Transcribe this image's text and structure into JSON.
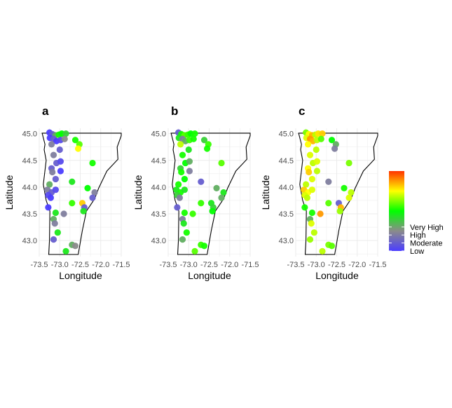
{
  "chart_data": {
    "type": "scatter",
    "xlabel": "Longitude",
    "ylabel": "Latitude",
    "xlim": [
      -73.5,
      -71.5
    ],
    "ylim": [
      42.7,
      45.1
    ],
    "x_ticks": [
      "-73.5",
      "-73.0",
      "-72.5",
      "-72.0",
      "-71.5"
    ],
    "y_ticks": [
      "43.0",
      "43.5",
      "44.0",
      "44.5",
      "45.0"
    ],
    "grid": true,
    "legend": {
      "position": "right",
      "type": "colorbar",
      "labels": [
        "Very High",
        "High",
        "Moderate",
        "Low"
      ],
      "label_values": [
        1.0,
        0.9,
        0.8,
        0.7
      ],
      "range": [
        0.7,
        1.7
      ],
      "colors": [
        "#4b3dff",
        "#8b8b8b",
        "#00ff00",
        "#ffff00",
        "#ff3300"
      ]
    },
    "outline": [
      [
        -73.43,
        45.01
      ],
      [
        -71.5,
        45.01
      ],
      [
        -71.5,
        44.96
      ],
      [
        -71.6,
        44.75
      ],
      [
        -71.58,
        44.52
      ],
      [
        -71.85,
        44.3
      ],
      [
        -72.05,
        43.98
      ],
      [
        -72.15,
        43.78
      ],
      [
        -72.35,
        43.55
      ],
      [
        -72.45,
        43.18
      ],
      [
        -72.55,
        42.74
      ],
      [
        -73.27,
        42.74
      ],
      [
        -73.25,
        43.0
      ],
      [
        -73.24,
        43.55
      ],
      [
        -73.33,
        43.75
      ],
      [
        -73.4,
        44.05
      ],
      [
        -73.33,
        44.5
      ],
      [
        -73.38,
        44.7
      ],
      [
        -73.36,
        44.8
      ],
      [
        -73.43,
        45.01
      ]
    ],
    "panels": [
      {
        "label": "a",
        "points": [
          {
            "lon": -73.25,
            "lat": 45.02,
            "v": 0.7
          },
          {
            "lon": -73.18,
            "lat": 44.99,
            "v": 0.75
          },
          {
            "lon": -73.1,
            "lat": 44.97,
            "v": 0.85
          },
          {
            "lon": -73.02,
            "lat": 44.98,
            "v": 0.95
          },
          {
            "lon": -72.95,
            "lat": 45.0,
            "v": 0.92
          },
          {
            "lon": -72.85,
            "lat": 45.0,
            "v": 0.88
          },
          {
            "lon": -73.24,
            "lat": 44.92,
            "v": 0.7
          },
          {
            "lon": -73.15,
            "lat": 44.9,
            "v": 0.75
          },
          {
            "lon": -73.08,
            "lat": 44.86,
            "v": 0.7
          },
          {
            "lon": -72.98,
            "lat": 44.88,
            "v": 0.72
          },
          {
            "lon": -72.88,
            "lat": 44.9,
            "v": 0.82
          },
          {
            "lon": -72.62,
            "lat": 44.88,
            "v": 0.95
          },
          {
            "lon": -72.52,
            "lat": 44.8,
            "v": 1.05
          },
          {
            "lon": -72.55,
            "lat": 44.72,
            "v": 1.3
          },
          {
            "lon": -73.2,
            "lat": 44.8,
            "v": 0.8
          },
          {
            "lon": -73.0,
            "lat": 44.7,
            "v": 0.75
          },
          {
            "lon": -73.15,
            "lat": 44.6,
            "v": 0.8
          },
          {
            "lon": -73.08,
            "lat": 44.45,
            "v": 0.75
          },
          {
            "lon": -72.98,
            "lat": 44.48,
            "v": 0.72
          },
          {
            "lon": -73.2,
            "lat": 44.35,
            "v": 0.75
          },
          {
            "lon": -73.18,
            "lat": 44.28,
            "v": 0.8
          },
          {
            "lon": -72.98,
            "lat": 44.3,
            "v": 0.7
          },
          {
            "lon": -72.2,
            "lat": 44.45,
            "v": 0.95
          },
          {
            "lon": -73.1,
            "lat": 44.15,
            "v": 0.75
          },
          {
            "lon": -73.25,
            "lat": 44.05,
            "v": 0.85
          },
          {
            "lon": -73.3,
            "lat": 43.95,
            "v": 0.8
          },
          {
            "lon": -73.2,
            "lat": 43.9,
            "v": 0.75
          },
          {
            "lon": -73.28,
            "lat": 43.85,
            "v": 0.72
          },
          {
            "lon": -73.22,
            "lat": 43.8,
            "v": 0.7
          },
          {
            "lon": -73.1,
            "lat": 43.95,
            "v": 0.72
          },
          {
            "lon": -72.7,
            "lat": 44.1,
            "v": 0.9
          },
          {
            "lon": -72.32,
            "lat": 43.98,
            "v": 0.92
          },
          {
            "lon": -72.15,
            "lat": 43.9,
            "v": 0.8
          },
          {
            "lon": -72.2,
            "lat": 43.8,
            "v": 0.75
          },
          {
            "lon": -73.28,
            "lat": 43.62,
            "v": 0.7
          },
          {
            "lon": -73.1,
            "lat": 43.52,
            "v": 0.9
          },
          {
            "lon": -72.7,
            "lat": 43.7,
            "v": 1.0
          },
          {
            "lon": -72.45,
            "lat": 43.7,
            "v": 1.4
          },
          {
            "lon": -72.4,
            "lat": 43.62,
            "v": 0.75
          },
          {
            "lon": -72.42,
            "lat": 43.55,
            "v": 0.9
          },
          {
            "lon": -72.9,
            "lat": 43.5,
            "v": 0.8
          },
          {
            "lon": -73.15,
            "lat": 43.4,
            "v": 0.85
          },
          {
            "lon": -73.12,
            "lat": 43.32,
            "v": 0.8
          },
          {
            "lon": -73.05,
            "lat": 43.15,
            "v": 0.9
          },
          {
            "lon": -73.15,
            "lat": 43.02,
            "v": 0.75
          },
          {
            "lon": -72.7,
            "lat": 42.92,
            "v": 0.85
          },
          {
            "lon": -72.62,
            "lat": 42.9,
            "v": 0.82
          },
          {
            "lon": -72.85,
            "lat": 42.8,
            "v": 0.9
          }
        ]
      },
      {
        "label": "b",
        "points": [
          {
            "lon": -73.25,
            "lat": 45.02,
            "v": 0.75
          },
          {
            "lon": -73.18,
            "lat": 44.99,
            "v": 0.95
          },
          {
            "lon": -73.1,
            "lat": 44.97,
            "v": 1.05
          },
          {
            "lon": -73.02,
            "lat": 44.98,
            "v": 1.0
          },
          {
            "lon": -72.95,
            "lat": 45.0,
            "v": 0.92
          },
          {
            "lon": -72.85,
            "lat": 45.0,
            "v": 0.95
          },
          {
            "lon": -73.24,
            "lat": 44.92,
            "v": 0.9
          },
          {
            "lon": -73.15,
            "lat": 44.9,
            "v": 0.8
          },
          {
            "lon": -73.08,
            "lat": 44.86,
            "v": 0.85
          },
          {
            "lon": -72.98,
            "lat": 44.88,
            "v": 1.0
          },
          {
            "lon": -72.88,
            "lat": 44.9,
            "v": 0.95
          },
          {
            "lon": -72.62,
            "lat": 44.88,
            "v": 0.88
          },
          {
            "lon": -72.52,
            "lat": 44.8,
            "v": 1.0
          },
          {
            "lon": -72.55,
            "lat": 44.72,
            "v": 0.95
          },
          {
            "lon": -73.2,
            "lat": 44.8,
            "v": 1.2
          },
          {
            "lon": -73.0,
            "lat": 44.7,
            "v": 0.9
          },
          {
            "lon": -73.15,
            "lat": 44.6,
            "v": 0.95
          },
          {
            "lon": -73.08,
            "lat": 44.45,
            "v": 0.92
          },
          {
            "lon": -72.98,
            "lat": 44.48,
            "v": 0.85
          },
          {
            "lon": -73.2,
            "lat": 44.35,
            "v": 0.88
          },
          {
            "lon": -73.18,
            "lat": 44.28,
            "v": 0.95
          },
          {
            "lon": -72.98,
            "lat": 44.3,
            "v": 0.8
          },
          {
            "lon": -72.2,
            "lat": 44.45,
            "v": 1.05
          },
          {
            "lon": -73.1,
            "lat": 44.15,
            "v": 0.92
          },
          {
            "lon": -73.25,
            "lat": 44.05,
            "v": 0.95
          },
          {
            "lon": -73.3,
            "lat": 43.95,
            "v": 0.9
          },
          {
            "lon": -73.2,
            "lat": 43.9,
            "v": 0.95
          },
          {
            "lon": -73.28,
            "lat": 43.85,
            "v": 0.88
          },
          {
            "lon": -73.22,
            "lat": 43.8,
            "v": 0.8
          },
          {
            "lon": -73.1,
            "lat": 43.95,
            "v": 0.9
          },
          {
            "lon": -72.7,
            "lat": 44.1,
            "v": 0.75
          },
          {
            "lon": -72.32,
            "lat": 43.98,
            "v": 0.85
          },
          {
            "lon": -72.15,
            "lat": 43.9,
            "v": 0.9
          },
          {
            "lon": -72.2,
            "lat": 43.8,
            "v": 0.85
          },
          {
            "lon": -73.28,
            "lat": 43.62,
            "v": 0.75
          },
          {
            "lon": -73.1,
            "lat": 43.52,
            "v": 0.95
          },
          {
            "lon": -72.7,
            "lat": 43.7,
            "v": 1.0
          },
          {
            "lon": -72.45,
            "lat": 43.7,
            "v": 0.9
          },
          {
            "lon": -72.4,
            "lat": 43.62,
            "v": 0.88
          },
          {
            "lon": -72.42,
            "lat": 43.55,
            "v": 0.92
          },
          {
            "lon": -72.9,
            "lat": 43.5,
            "v": 1.0
          },
          {
            "lon": -73.15,
            "lat": 43.4,
            "v": 0.8
          },
          {
            "lon": -73.12,
            "lat": 43.32,
            "v": 0.9
          },
          {
            "lon": -73.05,
            "lat": 43.15,
            "v": 0.95
          },
          {
            "lon": -73.15,
            "lat": 43.02,
            "v": 0.85
          },
          {
            "lon": -72.7,
            "lat": 42.92,
            "v": 1.0
          },
          {
            "lon": -72.62,
            "lat": 42.9,
            "v": 0.95
          },
          {
            "lon": -72.85,
            "lat": 42.8,
            "v": 1.05
          }
        ]
      },
      {
        "label": "c",
        "points": [
          {
            "lon": -73.25,
            "lat": 45.02,
            "v": 1.1
          },
          {
            "lon": -73.18,
            "lat": 44.99,
            "v": 1.3
          },
          {
            "lon": -73.1,
            "lat": 44.97,
            "v": 1.45
          },
          {
            "lon": -73.02,
            "lat": 44.98,
            "v": 1.2
          },
          {
            "lon": -72.95,
            "lat": 45.0,
            "v": 1.35
          },
          {
            "lon": -72.85,
            "lat": 45.0,
            "v": 1.4
          },
          {
            "lon": -73.24,
            "lat": 44.92,
            "v": 1.25
          },
          {
            "lon": -73.15,
            "lat": 44.9,
            "v": 1.5
          },
          {
            "lon": -73.08,
            "lat": 44.86,
            "v": 1.45
          },
          {
            "lon": -72.98,
            "lat": 44.88,
            "v": 1.2
          },
          {
            "lon": -72.88,
            "lat": 44.9,
            "v": 1.05
          },
          {
            "lon": -72.62,
            "lat": 44.88,
            "v": 0.92
          },
          {
            "lon": -72.52,
            "lat": 44.8,
            "v": 0.85
          },
          {
            "lon": -72.55,
            "lat": 44.72,
            "v": 0.8
          },
          {
            "lon": -73.2,
            "lat": 44.8,
            "v": 1.3
          },
          {
            "lon": -73.0,
            "lat": 44.7,
            "v": 1.2
          },
          {
            "lon": -73.15,
            "lat": 44.6,
            "v": 1.25
          },
          {
            "lon": -73.08,
            "lat": 44.45,
            "v": 1.2
          },
          {
            "lon": -72.98,
            "lat": 44.48,
            "v": 1.25
          },
          {
            "lon": -73.2,
            "lat": 44.35,
            "v": 1.3
          },
          {
            "lon": -73.18,
            "lat": 44.28,
            "v": 1.4
          },
          {
            "lon": -72.98,
            "lat": 44.3,
            "v": 1.2
          },
          {
            "lon": -72.2,
            "lat": 44.45,
            "v": 1.1
          },
          {
            "lon": -73.1,
            "lat": 44.15,
            "v": 1.25
          },
          {
            "lon": -73.25,
            "lat": 44.05,
            "v": 1.2
          },
          {
            "lon": -73.3,
            "lat": 43.95,
            "v": 1.4
          },
          {
            "lon": -73.2,
            "lat": 43.9,
            "v": 1.3
          },
          {
            "lon": -73.28,
            "lat": 43.85,
            "v": 1.25
          },
          {
            "lon": -73.22,
            "lat": 43.8,
            "v": 1.2
          },
          {
            "lon": -73.1,
            "lat": 43.95,
            "v": 1.25
          },
          {
            "lon": -72.7,
            "lat": 44.1,
            "v": 0.8
          },
          {
            "lon": -72.32,
            "lat": 43.98,
            "v": 0.95
          },
          {
            "lon": -72.15,
            "lat": 43.9,
            "v": 1.2
          },
          {
            "lon": -72.2,
            "lat": 43.8,
            "v": 1.25
          },
          {
            "lon": -73.28,
            "lat": 43.62,
            "v": 0.95
          },
          {
            "lon": -73.1,
            "lat": 43.52,
            "v": 0.95
          },
          {
            "lon": -72.7,
            "lat": 43.7,
            "v": 1.05
          },
          {
            "lon": -72.45,
            "lat": 43.7,
            "v": 0.75
          },
          {
            "lon": -72.4,
            "lat": 43.62,
            "v": 1.45
          },
          {
            "lon": -72.42,
            "lat": 43.55,
            "v": 1.15
          },
          {
            "lon": -72.9,
            "lat": 43.5,
            "v": 1.5
          },
          {
            "lon": -73.15,
            "lat": 43.4,
            "v": 0.85
          },
          {
            "lon": -73.12,
            "lat": 43.32,
            "v": 1.25
          },
          {
            "lon": -73.05,
            "lat": 43.15,
            "v": 1.2
          },
          {
            "lon": -73.15,
            "lat": 43.02,
            "v": 1.15
          },
          {
            "lon": -72.7,
            "lat": 42.92,
            "v": 1.1
          },
          {
            "lon": -72.62,
            "lat": 42.9,
            "v": 1.05
          },
          {
            "lon": -72.85,
            "lat": 42.8,
            "v": 1.2
          }
        ]
      }
    ]
  }
}
